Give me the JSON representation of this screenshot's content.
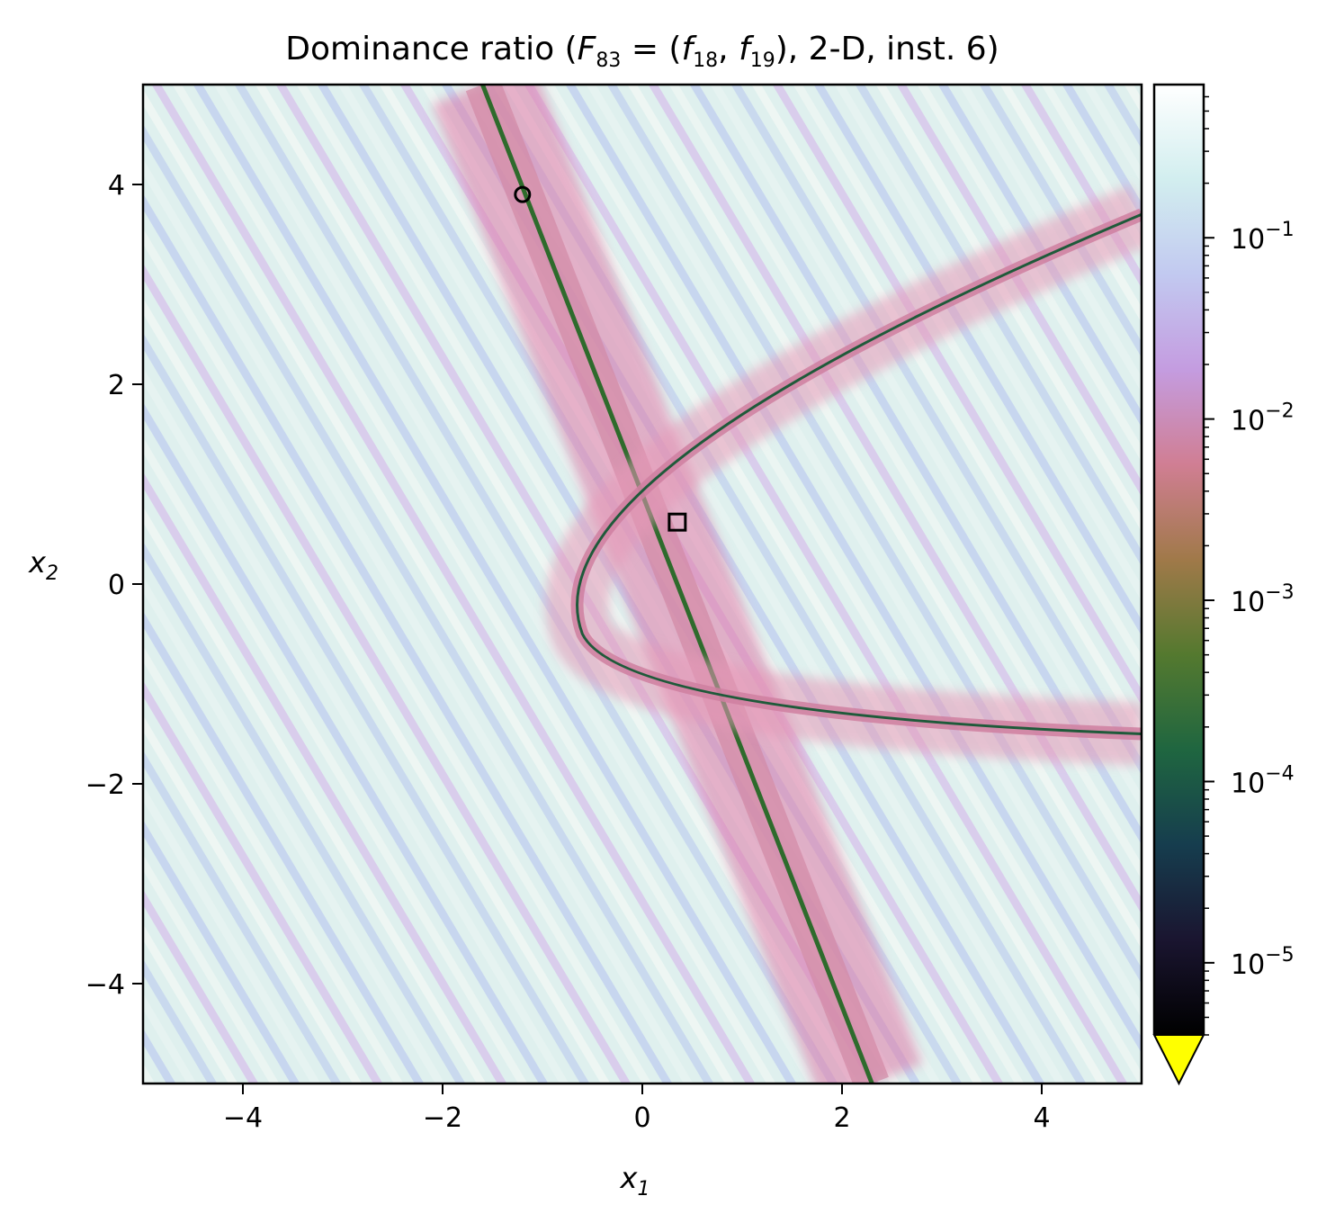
{
  "chart_data": {
    "type": "heatmap",
    "title": {
      "prefix": "Dominance ratio (",
      "F": "F",
      "F_sub": "83",
      "eq": " = (",
      "f": "f",
      "f1_sub": "18",
      "comma": ", ",
      "f2_sub": "19",
      "suffix": "), 2-D, inst. 6)"
    },
    "xlabel": {
      "base": "x",
      "sub": "1"
    },
    "ylabel": {
      "base": "x",
      "sub": "2"
    },
    "xlim": [
      -5,
      5
    ],
    "ylim": [
      -5,
      5
    ],
    "x_ticks": [
      -4,
      -2,
      0,
      2,
      4
    ],
    "y_ticks": [
      -4,
      -2,
      0,
      2,
      4
    ],
    "x_tick_labels": [
      "−4",
      "−2",
      "0",
      "2",
      "4"
    ],
    "y_tick_labels": [
      "−4",
      "−2",
      "0",
      "2",
      "4"
    ],
    "colorbar": {
      "scale": "log",
      "colormap": "cubehelix",
      "range": [
        4e-06,
        0.7
      ],
      "extend": "min",
      "under_color": "#ffff00",
      "ticks": [
        {
          "value": 1e-05,
          "base": "10",
          "exp": "−5"
        },
        {
          "value": 0.0001,
          "base": "10",
          "exp": "−4"
        },
        {
          "value": 0.001,
          "base": "10",
          "exp": "−3"
        },
        {
          "value": 0.01,
          "base": "10",
          "exp": "−2"
        },
        {
          "value": 0.1,
          "base": "10",
          "exp": "−1"
        }
      ]
    },
    "markers": [
      {
        "shape": "circle",
        "x": -1.2,
        "y": 3.9
      },
      {
        "shape": "square",
        "x": 0.35,
        "y": 0.62
      }
    ],
    "features": {
      "ridge_line": {
        "from": [
          -1.6,
          5.0
        ],
        "to": [
          2.3,
          -5.0
        ]
      },
      "hyperbola_vertex": [
        -0.6,
        -0.5
      ],
      "hyperbola_upper_branch_to": [
        5.0,
        3.7
      ],
      "hyperbola_lower_branch_to": [
        5.0,
        -1.5
      ]
    }
  }
}
